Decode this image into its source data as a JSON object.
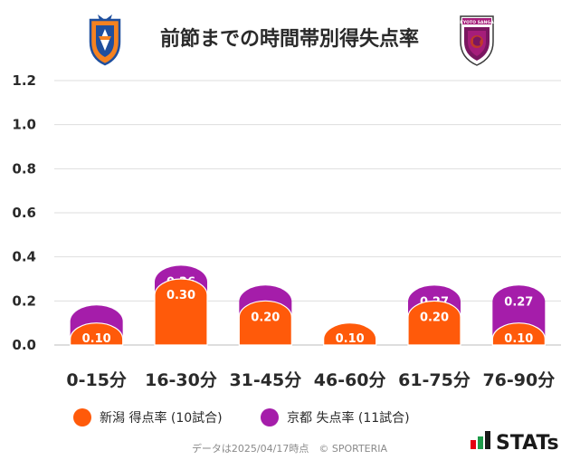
{
  "title": "前節までの時間帯別得失点率",
  "footer": "データは2025/04/17時点　© SPORTERIA",
  "brand": "STATs",
  "team_logos": {
    "home": "albirex-niigata-crest",
    "away": "kyoto-sanga-crest",
    "away_logo_text": "KYOTO SANGA"
  },
  "colors": {
    "series_1": "#FF5A0A",
    "series_2": "#A51DAA",
    "grid": "#d9d9d9",
    "brand_red": "#e50012",
    "brand_green": "#1e9b4a"
  },
  "chart_data": {
    "type": "bar",
    "title": "前節までの時間帯別得失点率",
    "categories": [
      "0-15分",
      "16-30分",
      "31-45分",
      "46-60分",
      "61-75分",
      "76-90分"
    ],
    "series": [
      {
        "name": "新潟 得点率 (10試合)",
        "values": [
          0.1,
          0.3,
          0.2,
          0.1,
          0.2,
          0.1
        ],
        "labels": [
          "0.10",
          "0.30",
          "0.20",
          "0.10",
          "0.20",
          "0.10"
        ]
      },
      {
        "name": "京都 失点率 (11試合)",
        "values": [
          0.18,
          0.36,
          0.27,
          null,
          0.27,
          0.27
        ],
        "labels": [
          "",
          "0.36",
          "",
          "",
          "0.27",
          "0.27"
        ]
      }
    ],
    "yticks": [
      "0.0",
      "0.2",
      "0.4",
      "0.6",
      "0.8",
      "1.0",
      "1.2"
    ],
    "ylim": [
      0,
      1.2
    ],
    "grid": true,
    "legend_position": "bottom-left"
  }
}
